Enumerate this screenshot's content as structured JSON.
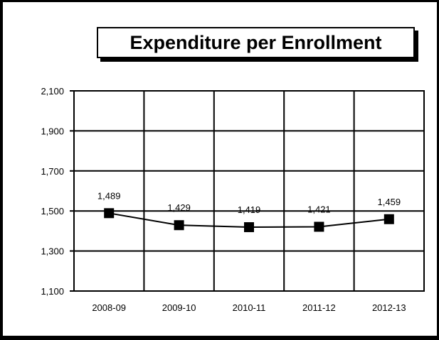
{
  "chart_data": {
    "type": "line",
    "title": "Expenditure per Enrollment",
    "categories": [
      "2008-09",
      "2009-10",
      "2010-11",
      "2011-12",
      "2012-13"
    ],
    "series": [
      {
        "values": [
          1489,
          1429,
          1419,
          1421,
          1459
        ]
      }
    ],
    "data_labels": [
      "1,489",
      "1,429",
      "1,419",
      "1,421",
      "1,459"
    ],
    "y_ticks": [
      1100,
      1300,
      1500,
      1700,
      1900,
      2100
    ],
    "y_tick_labels": [
      "1,100",
      "1,300",
      "1,500",
      "1,700",
      "1,900",
      "2,100"
    ],
    "ylim": [
      1100,
      2100
    ],
    "grid": true,
    "line_color": "#000000",
    "marker": "square"
  }
}
